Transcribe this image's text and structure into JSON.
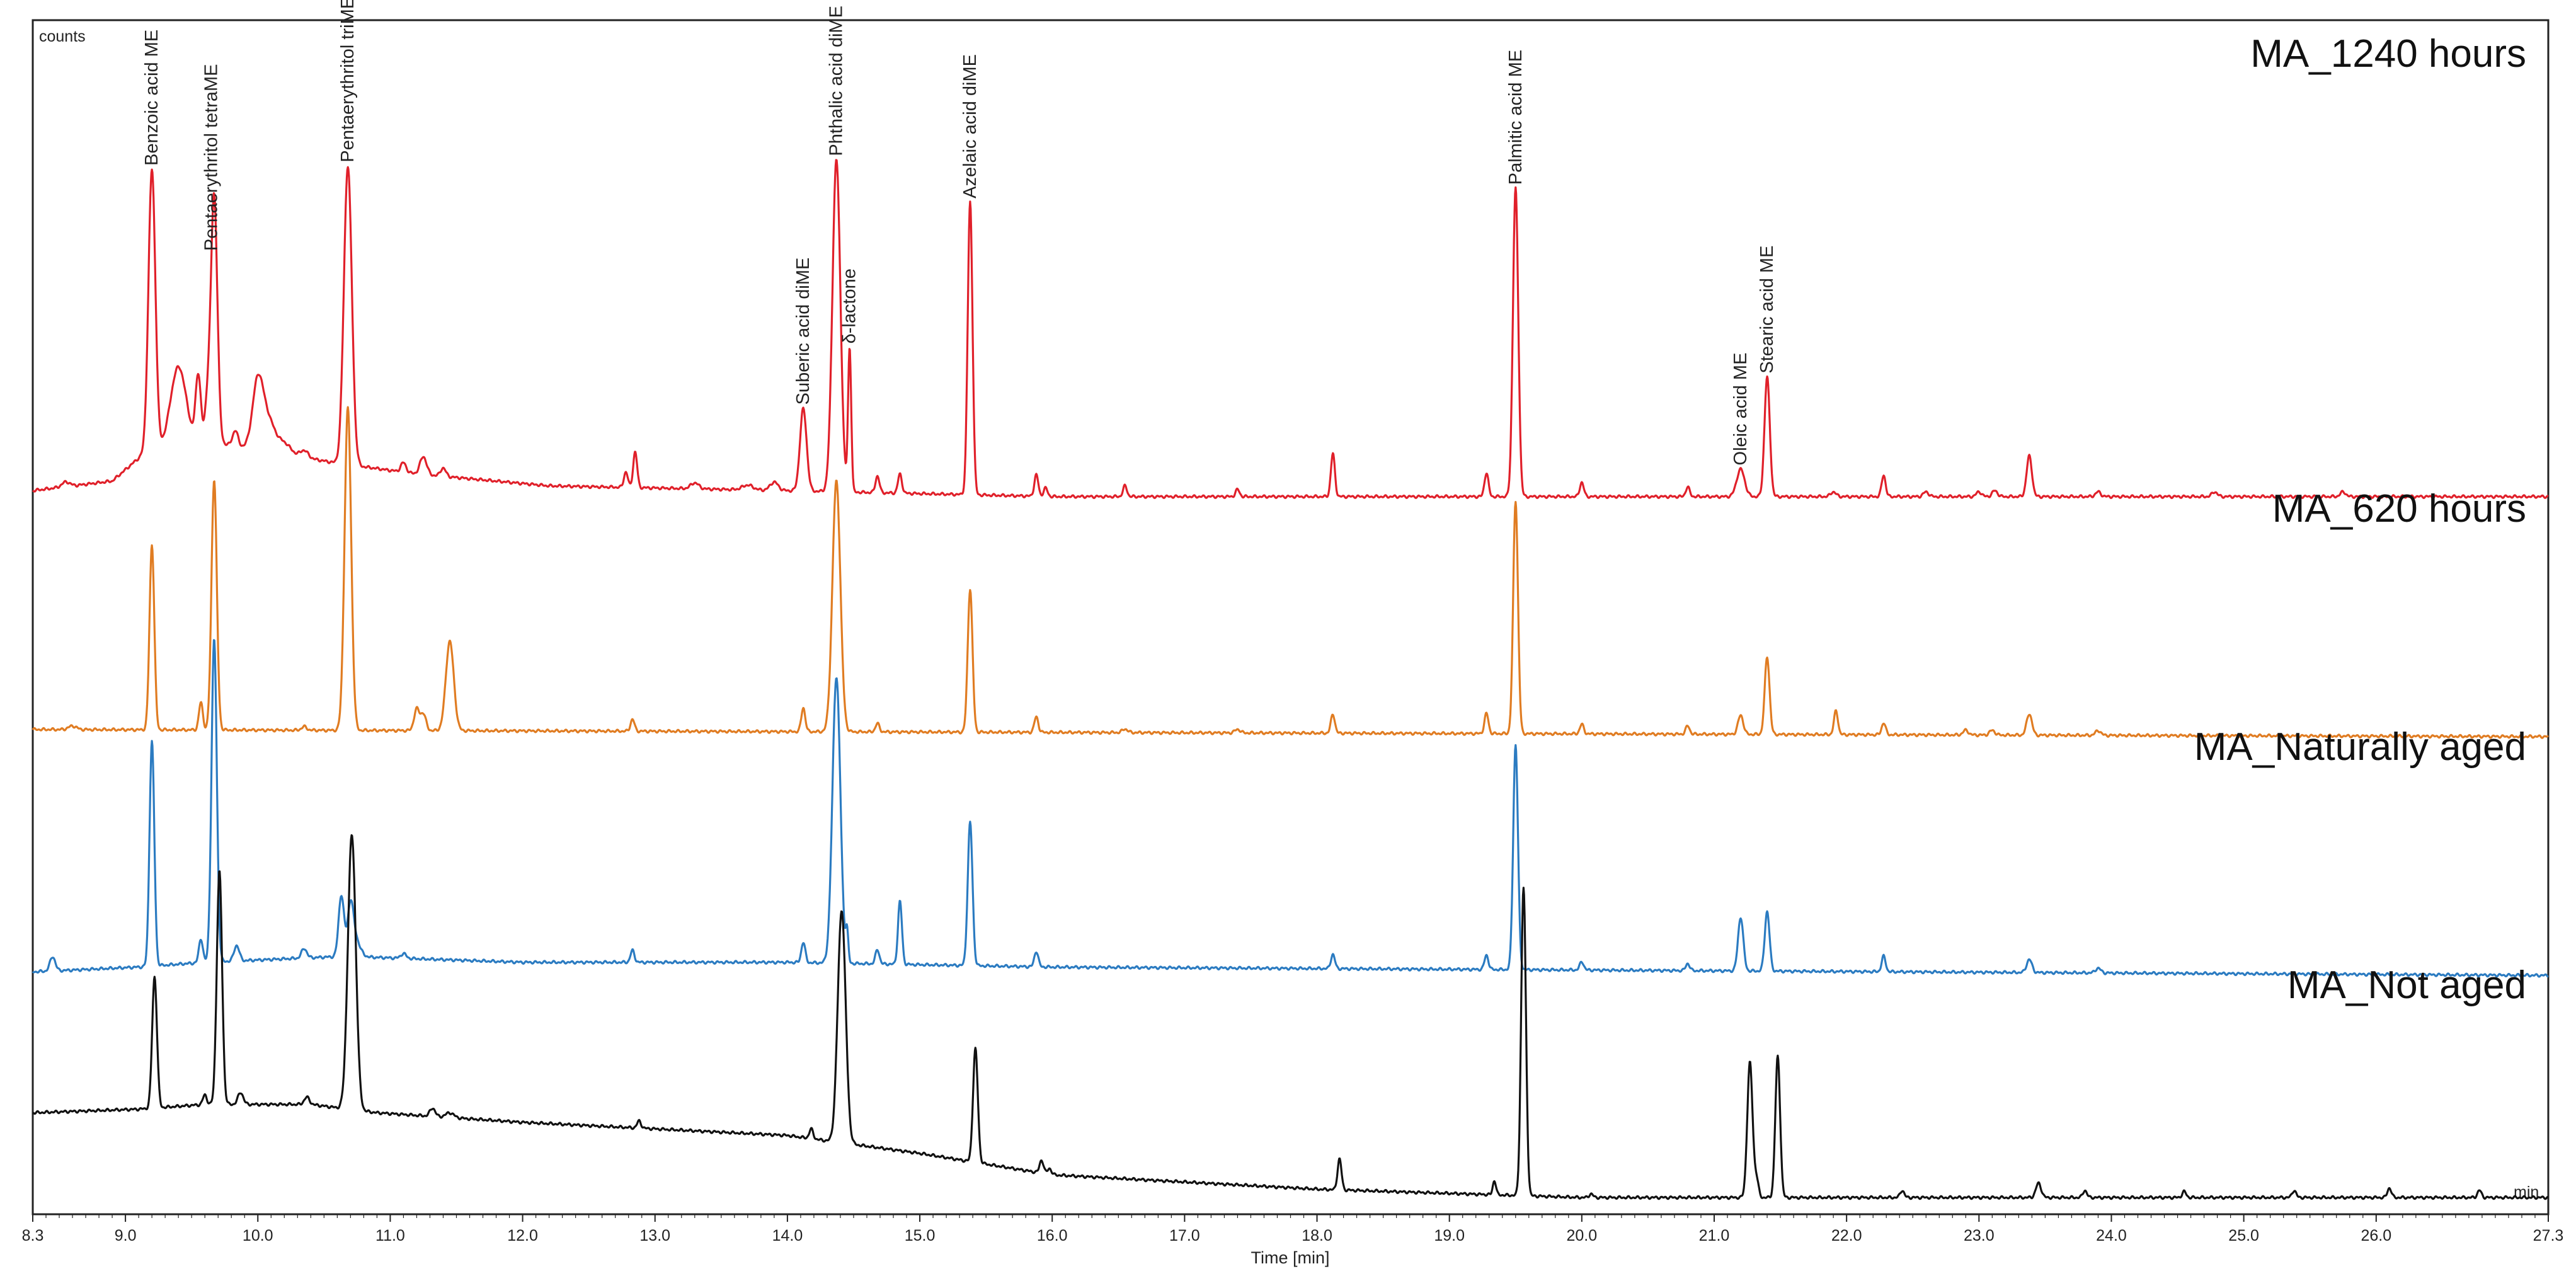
{
  "chart_data": {
    "type": "line",
    "y_axis_label": "counts",
    "x_axis_label": "Time [min]",
    "x_unit": "min",
    "x_range": [
      8.3,
      27.3
    ],
    "x_ticks": [
      "8.3",
      "9.0",
      "10.0",
      "11.0",
      "12.0",
      "13.0",
      "14.0",
      "15.0",
      "16.0",
      "17.0",
      "18.0",
      "19.0",
      "20.0",
      "21.0",
      "22.0",
      "23.0",
      "24.0",
      "25.0",
      "26.0",
      "27.3"
    ],
    "y_ticks_shown": false,
    "grid": false,
    "y_range": [
      0,
      100
    ],
    "peak_annotations": [
      {
        "text": "Benzoic acid ME",
        "x": 9.2
      },
      {
        "text": "Pentaerythritol tetraME",
        "x": 9.65
      },
      {
        "text": "Pentaerythritol triME",
        "x": 10.68
      },
      {
        "text": "Suberic acid diME",
        "x": 14.12
      },
      {
        "text": "Phthalic acid diME",
        "x": 14.37
      },
      {
        "text": "δ-lactone",
        "x": 14.47
      },
      {
        "text": "Azelaic acid diME",
        "x": 15.38
      },
      {
        "text": "Palmitic acid ME",
        "x": 19.5
      },
      {
        "text": "Oleic acid ME",
        "x": 21.2
      },
      {
        "text": "Stearic acid ME",
        "x": 21.4
      }
    ],
    "series": [
      {
        "name": "MA_1240 hours",
        "color": "#e0202a",
        "baseline": [
          [
            8.3,
            60.6
          ],
          [
            8.9,
            61.4
          ],
          [
            9.15,
            63.8
          ],
          [
            9.7,
            64.6
          ],
          [
            10.6,
            62.9
          ],
          [
            11.2,
            62.0
          ],
          [
            12.2,
            61.0
          ],
          [
            14.0,
            60.6
          ],
          [
            16.0,
            60.1
          ],
          [
            27.3,
            60.1
          ]
        ],
        "peaks": [
          [
            8.55,
            0.4,
            0.03
          ],
          [
            9.2,
            23.6,
            0.026
          ],
          [
            9.4,
            6.8,
            0.06
          ],
          [
            9.55,
            5.8,
            0.02
          ],
          [
            9.62,
            3.5,
            0.02
          ],
          [
            9.67,
            20.8,
            0.024
          ],
          [
            9.83,
            1.3,
            0.02
          ],
          [
            10.0,
            5.6,
            0.04
          ],
          [
            10.08,
            2.5,
            0.05
          ],
          [
            10.2,
            0.9,
            0.05
          ],
          [
            10.35,
            0.6,
            0.03
          ],
          [
            10.68,
            25.0,
            0.03
          ],
          [
            11.1,
            0.8,
            0.02
          ],
          [
            11.25,
            1.5,
            0.025
          ],
          [
            11.4,
            0.7,
            0.02
          ],
          [
            12.78,
            1.3,
            0.015
          ],
          [
            12.85,
            3.0,
            0.015
          ],
          [
            13.3,
            0.5,
            0.03
          ],
          [
            13.7,
            0.4,
            0.04
          ],
          [
            13.9,
            0.7,
            0.03
          ],
          [
            14.12,
            6.9,
            0.025
          ],
          [
            14.37,
            27.8,
            0.03
          ],
          [
            14.47,
            12.0,
            0.012
          ],
          [
            14.68,
            1.4,
            0.015
          ],
          [
            14.85,
            1.6,
            0.015
          ],
          [
            15.38,
            24.5,
            0.018
          ],
          [
            15.88,
            1.8,
            0.015
          ],
          [
            15.95,
            0.7,
            0.015
          ],
          [
            16.55,
            0.9,
            0.015
          ],
          [
            17.4,
            0.6,
            0.015
          ],
          [
            18.12,
            3.6,
            0.015
          ],
          [
            19.28,
            2.0,
            0.015
          ],
          [
            19.5,
            25.8,
            0.02
          ],
          [
            20.0,
            1.2,
            0.015
          ],
          [
            20.8,
            0.8,
            0.015
          ],
          [
            21.2,
            2.3,
            0.03
          ],
          [
            21.4,
            10.0,
            0.02
          ],
          [
            21.9,
            0.4,
            0.02
          ],
          [
            22.28,
            1.8,
            0.015
          ],
          [
            22.6,
            0.4,
            0.02
          ],
          [
            23.0,
            0.4,
            0.02
          ],
          [
            23.12,
            0.5,
            0.02
          ],
          [
            23.38,
            3.4,
            0.02
          ],
          [
            23.9,
            0.4,
            0.02
          ],
          [
            24.78,
            0.4,
            0.02
          ],
          [
            25.75,
            0.4,
            0.02
          ]
        ]
      },
      {
        "name": "MA_620 hours",
        "color": "#e07c22",
        "baseline": [
          [
            8.3,
            40.6
          ],
          [
            27.3,
            40.0
          ]
        ],
        "peaks": [
          [
            8.6,
            0.3,
            0.03
          ],
          [
            9.2,
            15.5,
            0.018
          ],
          [
            9.57,
            2.3,
            0.015
          ],
          [
            9.67,
            21.0,
            0.02
          ],
          [
            10.35,
            0.3,
            0.02
          ],
          [
            10.68,
            27.0,
            0.025
          ],
          [
            11.2,
            1.8,
            0.02
          ],
          [
            11.25,
            1.4,
            0.02
          ],
          [
            11.45,
            7.5,
            0.03
          ],
          [
            12.83,
            1.0,
            0.015
          ],
          [
            14.12,
            2.0,
            0.015
          ],
          [
            14.37,
            21.0,
            0.03
          ],
          [
            14.68,
            0.7,
            0.015
          ],
          [
            15.38,
            12.0,
            0.018
          ],
          [
            15.88,
            1.3,
            0.015
          ],
          [
            16.55,
            0.3,
            0.02
          ],
          [
            17.4,
            0.3,
            0.02
          ],
          [
            18.12,
            1.6,
            0.015
          ],
          [
            19.28,
            1.7,
            0.015
          ],
          [
            19.5,
            19.5,
            0.018
          ],
          [
            20.0,
            0.8,
            0.015
          ],
          [
            20.8,
            0.7,
            0.015
          ],
          [
            21.2,
            1.6,
            0.02
          ],
          [
            21.4,
            6.5,
            0.018
          ],
          [
            21.92,
            2.0,
            0.015
          ],
          [
            22.28,
            1.0,
            0.015
          ],
          [
            22.9,
            0.4,
            0.02
          ],
          [
            23.1,
            0.4,
            0.02
          ],
          [
            23.38,
            1.8,
            0.02
          ],
          [
            23.9,
            0.4,
            0.02
          ]
        ]
      },
      {
        "name": "MA_Naturally aged",
        "color": "#2b7bc1",
        "baseline": [
          [
            8.3,
            20.3
          ],
          [
            9.1,
            20.7
          ],
          [
            9.6,
            21.1
          ],
          [
            10.65,
            21.6
          ],
          [
            12.0,
            21.1
          ],
          [
            14.0,
            21.1
          ],
          [
            16.0,
            20.7
          ],
          [
            27.3,
            20.0
          ]
        ],
        "peaks": [
          [
            8.45,
            1.2,
            0.02
          ],
          [
            9.2,
            18.8,
            0.018
          ],
          [
            9.57,
            2.0,
            0.015
          ],
          [
            9.67,
            27.0,
            0.02
          ],
          [
            9.84,
            1.3,
            0.02
          ],
          [
            10.35,
            0.8,
            0.02
          ],
          [
            10.63,
            5.0,
            0.02
          ],
          [
            10.7,
            3.0,
            0.02
          ],
          [
            10.72,
            2.0,
            0.04
          ],
          [
            11.1,
            0.4,
            0.02
          ],
          [
            12.83,
            1.0,
            0.015
          ],
          [
            14.12,
            1.7,
            0.015
          ],
          [
            14.37,
            24.0,
            0.03
          ],
          [
            14.45,
            2.5,
            0.01
          ],
          [
            14.68,
            1.2,
            0.015
          ],
          [
            14.85,
            5.3,
            0.015
          ],
          [
            15.38,
            12.0,
            0.018
          ],
          [
            15.88,
            1.3,
            0.015
          ],
          [
            18.12,
            1.2,
            0.015
          ],
          [
            19.28,
            1.2,
            0.015
          ],
          [
            19.5,
            18.8,
            0.018
          ],
          [
            20.0,
            0.7,
            0.015
          ],
          [
            20.8,
            0.6,
            0.015
          ],
          [
            21.2,
            4.5,
            0.02
          ],
          [
            21.4,
            5.0,
            0.018
          ],
          [
            22.28,
            1.3,
            0.015
          ],
          [
            23.38,
            1.1,
            0.02
          ],
          [
            23.9,
            0.4,
            0.02
          ]
        ]
      },
      {
        "name": "MA_Not aged",
        "color": "#111111",
        "baseline": [
          [
            8.3,
            8.5
          ],
          [
            9.1,
            8.8
          ],
          [
            9.6,
            9.2
          ],
          [
            10.4,
            9.2
          ],
          [
            10.9,
            8.5
          ],
          [
            12.0,
            7.7
          ],
          [
            14.0,
            6.6
          ],
          [
            15.0,
            5.1
          ],
          [
            16.0,
            3.3
          ],
          [
            17.0,
            2.7
          ],
          [
            18.0,
            2.1
          ],
          [
            20.0,
            1.4
          ],
          [
            22.0,
            1.4
          ],
          [
            27.3,
            1.4
          ]
        ],
        "peaks": [
          [
            9.22,
            11.0,
            0.018
          ],
          [
            9.6,
            0.8,
            0.015
          ],
          [
            9.71,
            19.5,
            0.02
          ],
          [
            9.87,
            1.0,
            0.02
          ],
          [
            10.37,
            0.6,
            0.02
          ],
          [
            10.71,
            23.0,
            0.03
          ],
          [
            11.32,
            0.7,
            0.02
          ],
          [
            11.45,
            0.4,
            0.03
          ],
          [
            12.88,
            0.6,
            0.015
          ],
          [
            14.18,
            0.8,
            0.015
          ],
          [
            14.41,
            19.5,
            0.03
          ],
          [
            15.42,
            9.5,
            0.018
          ],
          [
            15.92,
            1.1,
            0.015
          ],
          [
            15.98,
            0.5,
            0.015
          ],
          [
            18.17,
            2.6,
            0.015
          ],
          [
            19.34,
            1.2,
            0.012
          ],
          [
            19.56,
            25.8,
            0.018
          ],
          [
            20.07,
            0.3,
            0.015
          ],
          [
            21.27,
            11.3,
            0.02
          ],
          [
            21.32,
            1.5,
            0.015
          ],
          [
            21.48,
            11.8,
            0.018
          ],
          [
            22.42,
            0.6,
            0.015
          ],
          [
            23.45,
            1.2,
            0.02
          ],
          [
            23.8,
            0.6,
            0.015
          ],
          [
            24.55,
            0.5,
            0.015
          ],
          [
            25.38,
            0.6,
            0.015
          ],
          [
            26.1,
            0.8,
            0.015
          ],
          [
            26.78,
            0.6,
            0.015
          ]
        ]
      }
    ]
  }
}
